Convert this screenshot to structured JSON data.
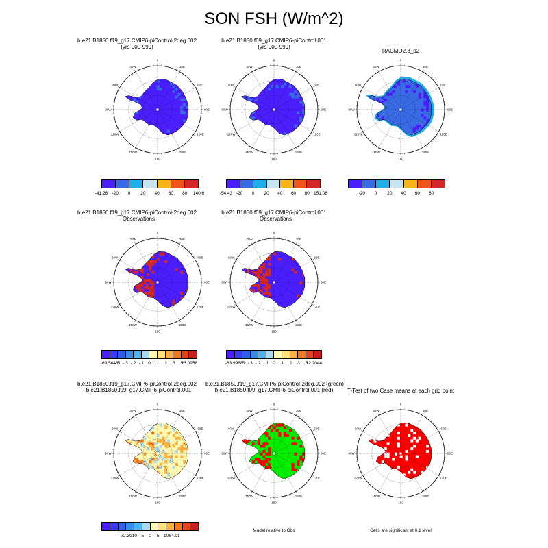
{
  "title": "SON FSH (W/m^2)",
  "panels": [
    {
      "id": "p1",
      "title": [
        "b.e21.B1850.f19_g17.CMIP6-piControl-2deg.002",
        "(yrs 900-999)"
      ],
      "style": "model"
    },
    {
      "id": "p2",
      "title": [
        "b.e21.B1850.f09_g17.CMIP6-piControl.001",
        "(yrs 900-999)"
      ],
      "style": "model"
    },
    {
      "id": "p3",
      "title": [
        "RACMO2.3_p2"
      ],
      "style": "obs"
    },
    {
      "id": "p4",
      "title": [
        "b.e21.B1850.f19_g17.CMIP6-piControl-2deg.002",
        "- Observations"
      ],
      "style": "bias"
    },
    {
      "id": "p5",
      "title": [
        "b.e21.B1850.f09_g17.CMIP6-piControl.001",
        "- Observations"
      ],
      "style": "bias"
    },
    {
      "id": "p6",
      "title": [
        "b.e21.B1850.f19_g17.CMIP6-piControl-2deg.002",
        "- b.e21.B1850.f09_g17.CMIP6-piControl.001"
      ],
      "style": "diff"
    },
    {
      "id": "p7",
      "title": [
        "b.e21.B1850.f19_g17.CMIP6-piControl-2deg.002 (green)",
        "b.e21.B1850.f09_g17.CMIP6-piControl.001 (red)"
      ],
      "style": "compare"
    },
    {
      "id": "p8",
      "title": [
        "T-Test of two Case means at each grid point"
      ],
      "style": "ttest"
    }
  ],
  "map_labels": {
    "lon_top": "0",
    "lon_30w": "30W",
    "lon_30e": "30E",
    "lon_60w": "60W",
    "lon_60e": "60E",
    "lon_90w": "90W",
    "lon_90e": "90E",
    "lon_120w": "120W",
    "lon_120e": "120E",
    "lon_150w": "150W",
    "lon_150e": "150E",
    "lon_180": "180"
  },
  "colorbars": [
    {
      "id": "cb1",
      "colors": [
        "#4b1eff",
        "#3a6be6",
        "#1faee8",
        "#c7e4f1",
        "#f7b519",
        "#f0541b",
        "#d42828"
      ],
      "labels": [
        "-41.26",
        "-20",
        "0",
        "20",
        "40",
        "60",
        "80",
        "140.6"
      ]
    },
    {
      "id": "cb2",
      "colors": [
        "#4b1eff",
        "#3a6be6",
        "#1faee8",
        "#c7e4f1",
        "#f7b519",
        "#f0541b",
        "#d42828"
      ],
      "labels": [
        "-54.43",
        "-20",
        "0",
        "20",
        "40",
        "60",
        "80",
        "151.06"
      ]
    },
    {
      "id": "cb3",
      "colors": [
        "#4b1eff",
        "#3a6be6",
        "#1faee8",
        "#c7e4f1",
        "#f7b519",
        "#f0541b",
        "#d42828"
      ],
      "labels": [
        "-20",
        "0",
        "20",
        "40",
        "60",
        "80"
      ]
    },
    {
      "id": "cb4",
      "colors": [
        "#4b1eff",
        "#3a3af0",
        "#2f5ee8",
        "#3a8ae6",
        "#4fb2ee",
        "#a9d8ef",
        "#fff8b0",
        "#fde27a",
        "#f9b040",
        "#f0781e",
        "#e2421c",
        "#c81e1e"
      ],
      "labels": [
        "-69.5643",
        "-.5",
        "-.3",
        "-.2",
        "-.1",
        "0",
        ".1",
        ".2",
        ".3",
        ".5",
        "23.0958"
      ]
    },
    {
      "id": "cb5",
      "colors": [
        "#4b1eff",
        "#3a3af0",
        "#2f5ee8",
        "#3a8ae6",
        "#4fb2ee",
        "#a9d8ef",
        "#fff8b0",
        "#fde27a",
        "#f9b040",
        "#f0781e",
        "#e2421c",
        "#c81e1e"
      ],
      "labels": [
        "-63.9968",
        "-.5",
        "-.3",
        "-.2",
        "-.1",
        "0",
        ".1",
        ".2",
        ".3",
        ".5",
        "12.2044"
      ]
    },
    {
      "id": "cb6",
      "colors": [
        "#4b1eff",
        "#3a3af0",
        "#2f5ee8",
        "#3a8ae6",
        "#4fb2ee",
        "#a9d8ef",
        "#fff8b0",
        "#fde27a",
        "#f9b040",
        "#f0781e",
        "#e2421c",
        "#c81e1e"
      ],
      "labels": [
        "-72.39",
        "-10",
        "-5",
        "0",
        "5",
        "10",
        "64.01"
      ]
    }
  ],
  "notes": {
    "model_relative": "Model relative to Obs",
    "significance": "Cells are significant at 0.1 level"
  },
  "colors": {
    "land_model": "#4b1eff",
    "land_obs": "#3a6be6",
    "obs_edge": "#1faee8",
    "bias_red": "#d42828",
    "diff_bg": "#fff8b0",
    "diff_orange": "#f9b040",
    "green": "#00ee00",
    "red": "#ff0000"
  }
}
